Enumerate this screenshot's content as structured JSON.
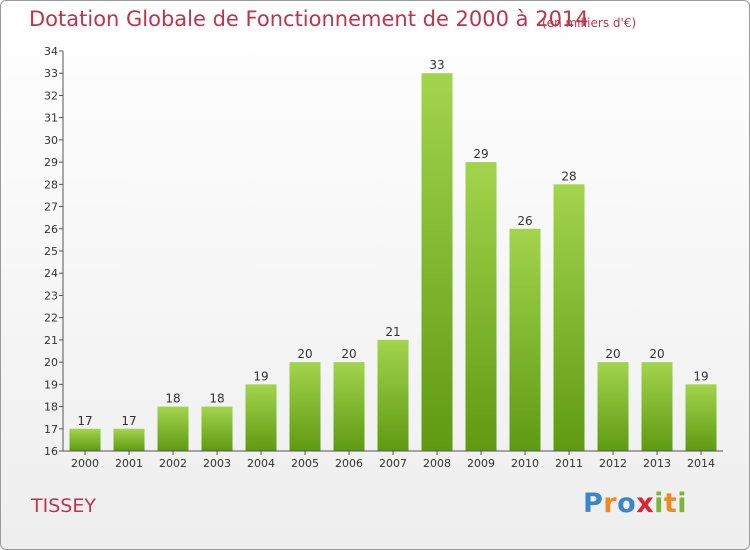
{
  "title": "Dotation Globale de Fonctionnement de 2000 à 2014",
  "subtitle": "(en milliers d'€)",
  "city": "TISSEY",
  "logo": {
    "letters": [
      "P",
      "r",
      "o",
      "x",
      "i",
      "t",
      "i"
    ],
    "colors": [
      "#3b86c8",
      "#f08a1c",
      "#3b86c8",
      "#d9262f",
      "#7db43a",
      "#f08a1c",
      "#7db43a"
    ]
  },
  "colors": {
    "title": "#c0334d",
    "bar_top": "#a3d44e",
    "bar_bottom": "#5f9a12"
  },
  "chart_data": {
    "type": "bar",
    "title": "Dotation Globale de Fonctionnement de 2000 à 2014",
    "xlabel": "",
    "ylabel": "(en milliers d'€)",
    "categories": [
      "2000",
      "2001",
      "2002",
      "2003",
      "2004",
      "2005",
      "2006",
      "2007",
      "2008",
      "2009",
      "2010",
      "2011",
      "2012",
      "2013",
      "2014"
    ],
    "values": [
      17,
      17,
      18,
      18,
      19,
      20,
      20,
      21,
      33,
      29,
      26,
      28,
      20,
      20,
      19
    ],
    "ylim": [
      16,
      34
    ],
    "yticks": [
      "16",
      "17",
      "18",
      "19",
      "20",
      "21",
      "22",
      "23",
      "24",
      "25",
      "26",
      "27",
      "28",
      "29",
      "30",
      "31",
      "32",
      "33",
      "34"
    ],
    "grid": false
  }
}
